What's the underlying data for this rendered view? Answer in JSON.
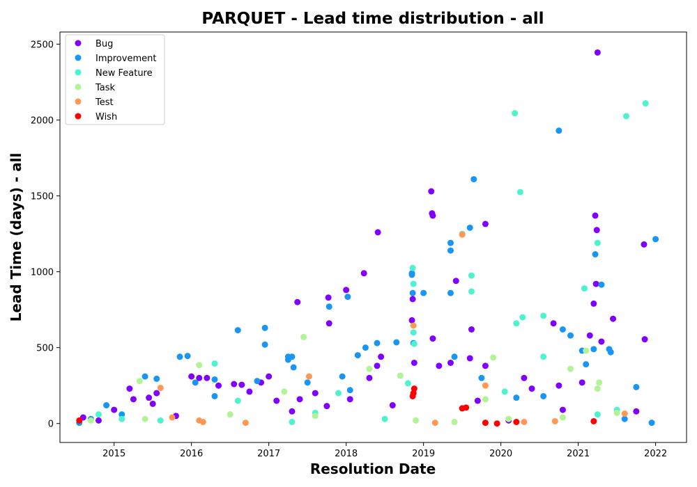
{
  "chart_data": {
    "type": "scatter",
    "title": "PARQUET - Lead time distribution - all",
    "xlabel": "Resolution Date",
    "ylabel": "Lead Time (days) - all",
    "xlim": [
      2014.3,
      2022.4
    ],
    "ylim": [
      -125,
      2580
    ],
    "x_ticks": [
      2015,
      2016,
      2017,
      2018,
      2019,
      2020,
      2021,
      2022
    ],
    "x_tick_labels": [
      "2015",
      "2016",
      "2017",
      "2018",
      "2019",
      "2020",
      "2021",
      "2022"
    ],
    "y_ticks": [
      0,
      500,
      1000,
      1500,
      2000,
      2500
    ],
    "y_tick_labels": [
      "0",
      "500",
      "1000",
      "1500",
      "2000",
      "2500"
    ],
    "grid": false,
    "legend_position": "top-left",
    "series": [
      {
        "name": "Bug",
        "color": "#8000ff",
        "points": [
          [
            2014.6,
            40
          ],
          [
            2014.8,
            20
          ],
          [
            2015.0,
            90
          ],
          [
            2015.2,
            230
          ],
          [
            2015.25,
            160
          ],
          [
            2015.45,
            170
          ],
          [
            2015.5,
            130
          ],
          [
            2015.55,
            200
          ],
          [
            2015.8,
            50
          ],
          [
            2016.0,
            310
          ],
          [
            2016.1,
            300
          ],
          [
            2016.2,
            300
          ],
          [
            2016.35,
            250
          ],
          [
            2016.55,
            260
          ],
          [
            2016.65,
            255
          ],
          [
            2016.75,
            210
          ],
          [
            2016.9,
            270
          ],
          [
            2017.0,
            310
          ],
          [
            2017.1,
            150
          ],
          [
            2017.3,
            80
          ],
          [
            2017.37,
            800
          ],
          [
            2017.4,
            160
          ],
          [
            2017.6,
            200
          ],
          [
            2017.75,
            115
          ],
          [
            2017.77,
            830
          ],
          [
            2017.78,
            660
          ],
          [
            2018.0,
            880
          ],
          [
            2018.05,
            160
          ],
          [
            2018.23,
            990
          ],
          [
            2018.3,
            300
          ],
          [
            2018.4,
            380
          ],
          [
            2018.41,
            1260
          ],
          [
            2018.45,
            440
          ],
          [
            2018.6,
            120
          ],
          [
            2018.85,
            680
          ],
          [
            2018.86,
            820
          ],
          [
            2018.88,
            400
          ],
          [
            2019.1,
            1530
          ],
          [
            2019.11,
            1385
          ],
          [
            2019.12,
            1370
          ],
          [
            2019.12,
            560
          ],
          [
            2019.2,
            380
          ],
          [
            2019.35,
            400
          ],
          [
            2019.42,
            940
          ],
          [
            2019.6,
            430
          ],
          [
            2019.62,
            620
          ],
          [
            2019.7,
            150
          ],
          [
            2019.8,
            1315
          ],
          [
            2019.8,
            380
          ],
          [
            2020.1,
            20
          ],
          [
            2020.3,
            300
          ],
          [
            2020.4,
            230
          ],
          [
            2020.68,
            660
          ],
          [
            2020.75,
            250
          ],
          [
            2020.8,
            90
          ],
          [
            2021.05,
            270
          ],
          [
            2021.15,
            580
          ],
          [
            2021.2,
            790
          ],
          [
            2021.22,
            1370
          ],
          [
            2021.24,
            1275
          ],
          [
            2021.23,
            920
          ],
          [
            2021.25,
            2445
          ],
          [
            2021.3,
            540
          ],
          [
            2021.45,
            690
          ],
          [
            2021.75,
            80
          ],
          [
            2021.85,
            1180
          ],
          [
            2021.86,
            555
          ]
        ]
      },
      {
        "name": "Improvement",
        "color": "#1996f3",
        "points": [
          [
            2014.55,
            5
          ],
          [
            2014.7,
            30
          ],
          [
            2014.9,
            120
          ],
          [
            2015.1,
            60
          ],
          [
            2015.4,
            310
          ],
          [
            2015.55,
            295
          ],
          [
            2015.85,
            440
          ],
          [
            2015.95,
            445
          ],
          [
            2016.05,
            270
          ],
          [
            2016.3,
            180
          ],
          [
            2016.3,
            290
          ],
          [
            2016.6,
            615
          ],
          [
            2016.85,
            280
          ],
          [
            2016.95,
            630
          ],
          [
            2016.95,
            520
          ],
          [
            2017.25,
            420
          ],
          [
            2017.25,
            440
          ],
          [
            2017.3,
            440
          ],
          [
            2017.32,
            370
          ],
          [
            2017.5,
            270
          ],
          [
            2017.78,
            770
          ],
          [
            2017.95,
            310
          ],
          [
            2018.02,
            835
          ],
          [
            2018.05,
            220
          ],
          [
            2018.15,
            450
          ],
          [
            2018.25,
            500
          ],
          [
            2018.4,
            530
          ],
          [
            2018.65,
            535
          ],
          [
            2018.85,
            990
          ],
          [
            2018.85,
            980
          ],
          [
            2018.86,
            860
          ],
          [
            2018.87,
            530
          ],
          [
            2019.0,
            860
          ],
          [
            2019.35,
            1190
          ],
          [
            2019.35,
            1140
          ],
          [
            2019.35,
            860
          ],
          [
            2019.4,
            440
          ],
          [
            2019.6,
            1290
          ],
          [
            2019.65,
            1610
          ],
          [
            2019.75,
            300
          ],
          [
            2020.2,
            170
          ],
          [
            2020.55,
            180
          ],
          [
            2020.75,
            1930
          ],
          [
            2020.8,
            620
          ],
          [
            2020.9,
            580
          ],
          [
            2021.05,
            480
          ],
          [
            2021.1,
            390
          ],
          [
            2021.2,
            490
          ],
          [
            2021.22,
            1115
          ],
          [
            2021.3,
            915
          ],
          [
            2021.4,
            490
          ],
          [
            2021.42,
            470
          ],
          [
            2021.75,
            240
          ],
          [
            2022.0,
            1215
          ],
          [
            2021.95,
            5
          ],
          [
            2021.6,
            30
          ]
        ]
      },
      {
        "name": "New Feature",
        "color": "#4df3ce",
        "points": [
          [
            2014.8,
            60
          ],
          [
            2015.1,
            30
          ],
          [
            2015.6,
            20
          ],
          [
            2016.3,
            395
          ],
          [
            2016.6,
            150
          ],
          [
            2017.3,
            10
          ],
          [
            2017.6,
            70
          ],
          [
            2017.9,
            200
          ],
          [
            2018.5,
            30
          ],
          [
            2018.8,
            265
          ],
          [
            2018.86,
            1025
          ],
          [
            2018.87,
            920
          ],
          [
            2018.87,
            600
          ],
          [
            2018.88,
            525
          ],
          [
            2019.5,
            1250
          ],
          [
            2019.62,
            975
          ],
          [
            2019.62,
            870
          ],
          [
            2020.05,
            210
          ],
          [
            2020.18,
            2045
          ],
          [
            2020.2,
            660
          ],
          [
            2020.25,
            1525
          ],
          [
            2020.28,
            700
          ],
          [
            2020.55,
            710
          ],
          [
            2020.55,
            440
          ],
          [
            2021.08,
            890
          ],
          [
            2021.25,
            1190
          ],
          [
            2021.25,
            60
          ],
          [
            2021.62,
            2025
          ],
          [
            2021.87,
            2110
          ],
          [
            2021.5,
            90
          ]
        ]
      },
      {
        "name": "Task",
        "color": "#b2f396",
        "points": [
          [
            2014.7,
            20
          ],
          [
            2015.33,
            280
          ],
          [
            2015.4,
            30
          ],
          [
            2016.1,
            385
          ],
          [
            2016.5,
            60
          ],
          [
            2017.2,
            210
          ],
          [
            2017.45,
            570
          ],
          [
            2017.6,
            50
          ],
          [
            2018.3,
            360
          ],
          [
            2018.7,
            315
          ],
          [
            2018.9,
            20
          ],
          [
            2019.4,
            10
          ],
          [
            2019.8,
            160
          ],
          [
            2019.9,
            435
          ],
          [
            2020.1,
            30
          ],
          [
            2020.8,
            40
          ],
          [
            2020.9,
            360
          ],
          [
            2021.1,
            480
          ],
          [
            2021.25,
            230
          ],
          [
            2021.27,
            270
          ],
          [
            2021.5,
            70
          ]
        ]
      },
      {
        "name": "Test",
        "color": "#ff9755",
        "points": [
          [
            2015.6,
            235
          ],
          [
            2015.75,
            40
          ],
          [
            2016.1,
            20
          ],
          [
            2016.15,
            10
          ],
          [
            2016.7,
            5
          ],
          [
            2017.52,
            310
          ],
          [
            2018.87,
            645
          ],
          [
            2019.15,
            5
          ],
          [
            2019.5,
            1245
          ],
          [
            2019.8,
            250
          ],
          [
            2020.3,
            10
          ],
          [
            2020.7,
            15
          ],
          [
            2021.6,
            65
          ]
        ]
      },
      {
        "name": "Wish",
        "color": "#ff0000",
        "points": [
          [
            2014.55,
            20
          ],
          [
            2018.86,
            180
          ],
          [
            2018.87,
            200
          ],
          [
            2018.88,
            230
          ],
          [
            2019.5,
            100
          ],
          [
            2019.55,
            105
          ],
          [
            2019.8,
            5
          ],
          [
            2019.95,
            0
          ],
          [
            2020.2,
            10
          ],
          [
            2021.2,
            15
          ]
        ]
      }
    ]
  }
}
